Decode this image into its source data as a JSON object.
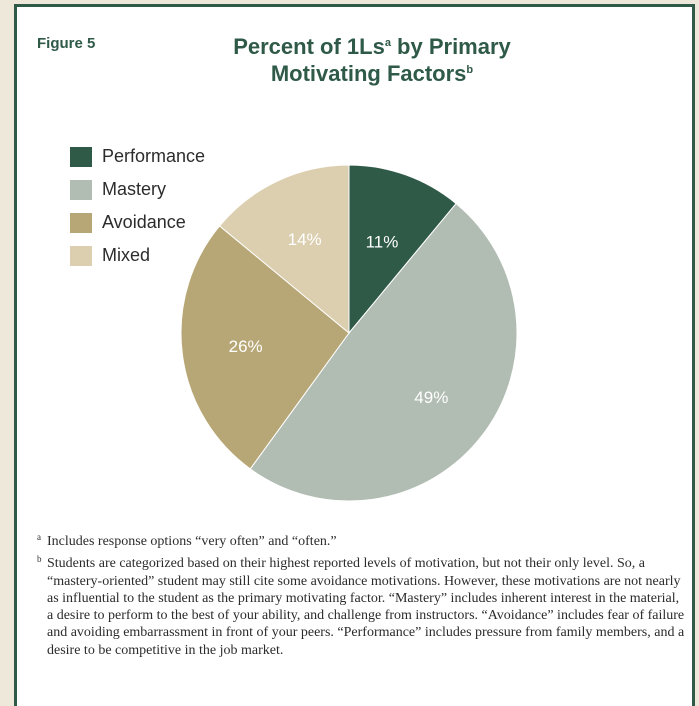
{
  "figure_label": "Figure 5",
  "title": {
    "line1_text": "Percent of 1Ls",
    "line1_sup": "a",
    "line1_rest": " by Primary",
    "line2_text": "Motivating Factors",
    "line2_sup": "b"
  },
  "colors": {
    "border": "#2f5a48",
    "performance": "#2f5a48",
    "mastery": "#b1bcb3",
    "avoidance": "#b8a776",
    "mixed": "#dccfb0"
  },
  "legend": [
    {
      "label": "Performance",
      "color": "#2f5a48"
    },
    {
      "label": "Mastery",
      "color": "#b1bcb3"
    },
    {
      "label": "Avoidance",
      "color": "#b8a776"
    },
    {
      "label": "Mixed",
      "color": "#dccfb0"
    }
  ],
  "chart_data": {
    "type": "pie",
    "title": "Percent of 1Ls by Primary Motivating Factors",
    "categories": [
      "Performance",
      "Mastery",
      "Avoidance",
      "Mixed"
    ],
    "values": [
      11,
      49,
      26,
      14
    ],
    "data_labels": [
      "11%",
      "49%",
      "26%",
      "14%"
    ],
    "colors": [
      "#2f5a48",
      "#b1bcb3",
      "#b8a776",
      "#dccfb0"
    ],
    "legend_position": "top-left"
  },
  "notes": [
    {
      "marker": "a",
      "text": "Includes response options “very often” and “often.”"
    },
    {
      "marker": "b",
      "text": "Students are categorized based on their highest reported levels of motivation, but not their only level. So, a “mastery-oriented” student may still cite some avoidance motivations. However, these motivations are not nearly as influential to the student as the primary motivating factor. “Mastery” includes inherent interest in the material, a desire to perform to the best of your ability, and challenge from instructors. “Avoidance” includes fear of failure and avoiding embarrassment in front of your peers. “Performance” includes pressure from family members, and a desire to be competitive in the job market."
    }
  ]
}
